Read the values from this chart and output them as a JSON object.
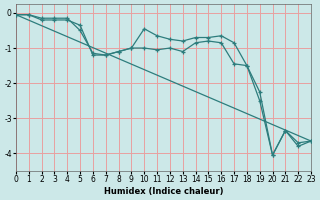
{
  "xlabel": "Humidex (Indice chaleur)",
  "bg_color": "#cce8e8",
  "grid_color": "#e8a0a0",
  "line_color": "#2d7d7d",
  "x_min": 0,
  "x_max": 23,
  "y_min": -4.5,
  "y_max": 0.25,
  "line1_x": [
    0,
    1,
    2,
    3,
    4,
    5,
    6,
    7,
    8,
    9,
    10,
    11,
    12,
    13,
    14,
    15,
    16,
    17,
    18,
    19,
    20,
    21,
    22,
    23
  ],
  "line1_y": [
    -0.05,
    -0.05,
    -0.2,
    -0.2,
    -0.2,
    -0.35,
    -1.2,
    -1.2,
    -1.1,
    -1.0,
    -0.45,
    -0.65,
    -0.75,
    -0.8,
    -0.7,
    -0.7,
    -0.65,
    -0.85,
    -1.5,
    -2.5,
    -4.05,
    -3.35,
    -3.7,
    -3.65
  ],
  "line2_x": [
    0,
    1,
    2,
    3,
    4,
    5,
    6,
    7,
    8,
    9,
    10,
    11,
    12,
    13,
    14,
    15,
    16,
    17,
    18,
    19,
    20,
    21,
    22,
    23
  ],
  "line2_y": [
    -0.05,
    -0.05,
    -0.15,
    -0.15,
    -0.15,
    -0.5,
    -1.15,
    -1.2,
    -1.1,
    -1.0,
    -1.0,
    -1.05,
    -1.0,
    -1.1,
    -0.85,
    -0.8,
    -0.85,
    -1.45,
    -1.5,
    -2.25,
    -4.05,
    -3.35,
    -3.8,
    -3.65
  ],
  "line3_x": [
    0,
    23
  ],
  "line3_y": [
    -0.05,
    -3.65
  ],
  "yticks": [
    0,
    -1,
    -2,
    -3,
    -4
  ],
  "xticks": [
    0,
    1,
    2,
    3,
    4,
    5,
    6,
    7,
    8,
    9,
    10,
    11,
    12,
    13,
    14,
    15,
    16,
    17,
    18,
    19,
    20,
    21,
    22,
    23
  ],
  "xlabel_fontsize": 6,
  "tick_fontsize": 5.5
}
